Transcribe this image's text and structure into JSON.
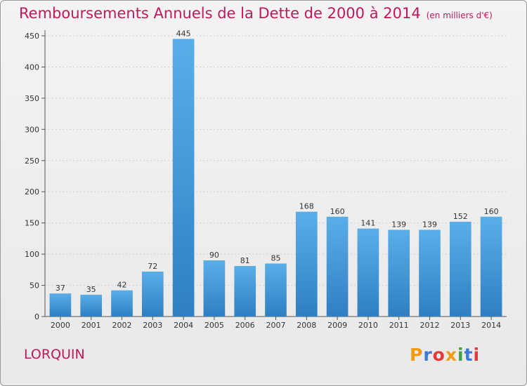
{
  "header": {
    "title": "Remboursements Annuels de la Dette de 2000 à 2014",
    "subtitle": "(en milliers d'€)"
  },
  "footer": {
    "commune": "LORQUIN",
    "brand_letters": [
      "P",
      "r",
      "o",
      "x",
      "i",
      "t",
      "i"
    ],
    "brand_colors": [
      "#f39c12",
      "#3a7bd5",
      "#e53935",
      "#f39c12",
      "#43a047",
      "#3a7bd5",
      "#e53935"
    ]
  },
  "chart_data": {
    "type": "bar",
    "title": "Remboursements Annuels de la Dette de 2000 à 2014",
    "subtitle": "(en milliers d'€)",
    "categories": [
      "2000",
      "2001",
      "2002",
      "2003",
      "2004",
      "2005",
      "2006",
      "2007",
      "2008",
      "2009",
      "2010",
      "2011",
      "2012",
      "2013",
      "2014"
    ],
    "values": [
      37,
      35,
      42,
      72,
      445,
      90,
      81,
      85,
      168,
      160,
      141,
      139,
      139,
      152,
      160
    ],
    "ylim": [
      0,
      450
    ],
    "yticks": [
      0,
      50,
      100,
      150,
      200,
      250,
      300,
      350,
      400,
      450
    ],
    "grid": true,
    "bar_color_top": "#5aaee8",
    "bar_color_bottom": "#2f7fc2"
  }
}
